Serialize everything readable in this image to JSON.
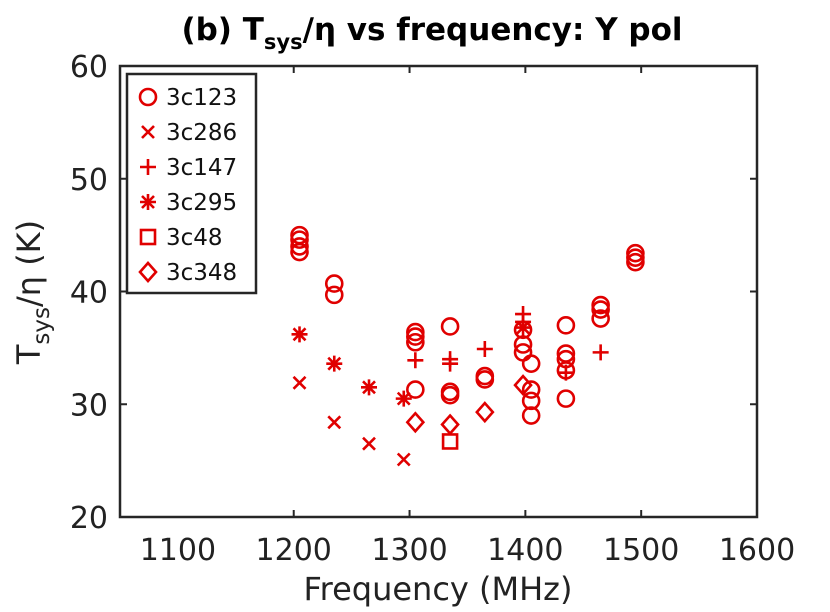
{
  "chart_data": {
    "type": "scatter",
    "title_prefix": "(b) T",
    "title_sub": "sys",
    "title_suffix": "/η vs frequency: Y pol",
    "xlabel": "Frequency (MHz)",
    "ylabel_main": "T",
    "ylabel_sub": "sys",
    "ylabel_suffix": "/η (K)",
    "xlim": [
      1050,
      1600
    ],
    "ylim": [
      20,
      60
    ],
    "xticks": [
      1100,
      1200,
      1300,
      1400,
      1500,
      1600
    ],
    "yticks": [
      20,
      30,
      40,
      50,
      60
    ],
    "legend_location": "top-left",
    "color": "#e00000",
    "series": [
      {
        "name": "3c123",
        "marker": "circle",
        "points": [
          [
            1205,
            43.5
          ],
          [
            1205,
            44.0
          ],
          [
            1205,
            44.6
          ],
          [
            1205,
            45.0
          ],
          [
            1235,
            39.7
          ],
          [
            1235,
            40.7
          ],
          [
            1305,
            31.3
          ],
          [
            1305,
            35.5
          ],
          [
            1305,
            36.0
          ],
          [
            1305,
            36.4
          ],
          [
            1335,
            30.8
          ],
          [
            1335,
            31.1
          ],
          [
            1335,
            36.9
          ],
          [
            1365,
            32.2
          ],
          [
            1365,
            32.5
          ],
          [
            1398,
            34.6
          ],
          [
            1398,
            35.3
          ],
          [
            1398,
            36.6
          ],
          [
            1405,
            29.0
          ],
          [
            1405,
            30.3
          ],
          [
            1405,
            31.3
          ],
          [
            1405,
            33.6
          ],
          [
            1435,
            30.5
          ],
          [
            1435,
            33.0
          ],
          [
            1435,
            34.0
          ],
          [
            1435,
            34.5
          ],
          [
            1435,
            37.0
          ],
          [
            1465,
            37.6
          ],
          [
            1465,
            38.4
          ],
          [
            1465,
            38.8
          ],
          [
            1495,
            42.6
          ],
          [
            1495,
            43.0
          ],
          [
            1495,
            43.4
          ]
        ]
      },
      {
        "name": "3c286",
        "marker": "x",
        "points": [
          [
            1205,
            31.9
          ],
          [
            1235,
            28.4
          ],
          [
            1265,
            26.5
          ],
          [
            1295,
            25.1
          ]
        ]
      },
      {
        "name": "3c147",
        "marker": "plus",
        "points": [
          [
            1305,
            33.9
          ],
          [
            1335,
            33.6
          ],
          [
            1335,
            34.0
          ],
          [
            1365,
            34.9
          ],
          [
            1398,
            38.0
          ],
          [
            1398,
            37.3
          ],
          [
            1435,
            32.8
          ],
          [
            1465,
            34.6
          ]
        ]
      },
      {
        "name": "3c295",
        "marker": "asterisk",
        "points": [
          [
            1205,
            36.2
          ],
          [
            1235,
            33.6
          ],
          [
            1265,
            31.5
          ],
          [
            1295,
            30.5
          ],
          [
            1398,
            36.8
          ]
        ]
      },
      {
        "name": "3c48",
        "marker": "square",
        "points": [
          [
            1335,
            26.7
          ]
        ]
      },
      {
        "name": "3c348",
        "marker": "diamond",
        "points": [
          [
            1305,
            28.4
          ],
          [
            1335,
            28.2
          ],
          [
            1365,
            29.3
          ],
          [
            1398,
            31.7
          ]
        ]
      }
    ]
  }
}
